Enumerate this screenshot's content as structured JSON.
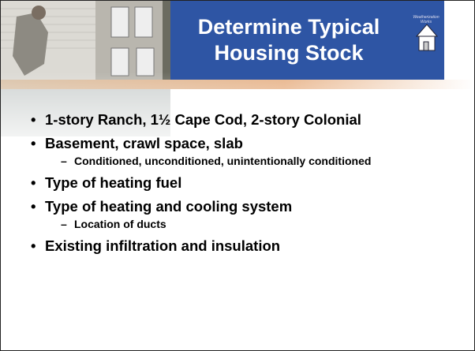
{
  "slide": {
    "title_lines": [
      "Determine Typical",
      "Housing Stock"
    ],
    "logo_text": [
      "Weatherization",
      "Works"
    ],
    "bullets": [
      {
        "text": "1-story Ranch, 1½ Cape Cod, 2-story Colonial",
        "sub": []
      },
      {
        "text": "Basement, crawl space, slab",
        "sub": [
          "Conditioned, unconditioned, unintentionally conditioned"
        ]
      },
      {
        "text": "Type of heating fuel",
        "sub": []
      },
      {
        "text": "Type of heating and cooling system",
        "sub": [
          "Location of ducts"
        ]
      },
      {
        "text": "Existing infiltration and insulation",
        "sub": []
      }
    ]
  }
}
